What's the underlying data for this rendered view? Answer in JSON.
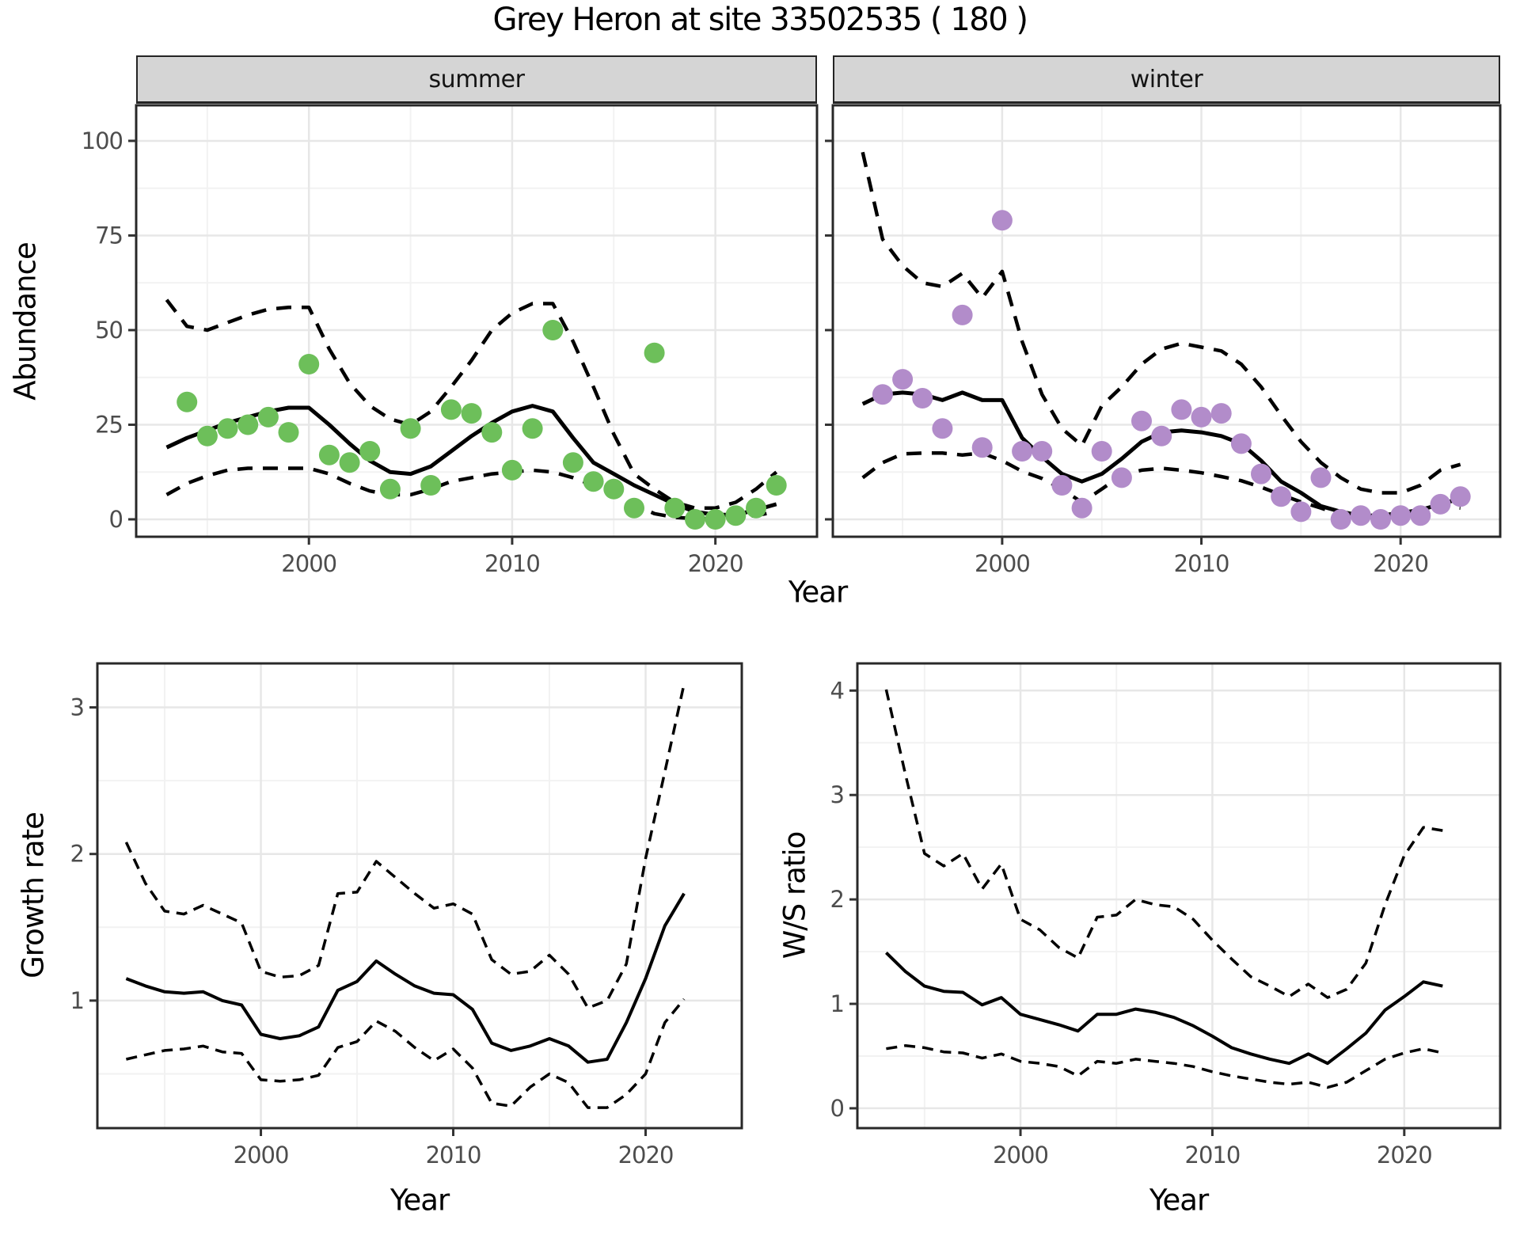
{
  "title": "Grey Heron at site 33502535 ( 180 )",
  "axis_titles": {
    "abundance": "Abundance",
    "year_top": "Year",
    "growth_rate": "Growth rate",
    "year_growth": "Year",
    "ws_ratio": "W/S ratio",
    "year_ws": "Year"
  },
  "colors": {
    "summer_point": "#6dbf5a",
    "winter_point": "#b28cca",
    "trend_line": "#000000",
    "ci_band_line": "#000000",
    "grid_major": "#e7e7e7",
    "grid_minor": "#f2f2f2",
    "panel_border": "#282828",
    "tick_mark": "#333333",
    "tick_label": "#4d4d4d",
    "strip_bg": "#d5d5d5"
  },
  "chart_data": [
    {
      "id": "abundance-summer",
      "type": "scatter",
      "facet": "summer",
      "title": "",
      "xlabel": "Year",
      "ylabel": "Abundance",
      "xlim": [
        1991.5,
        2025
      ],
      "ylim": [
        -4.6,
        109.4
      ],
      "xticks": [
        2000,
        2010,
        2020
      ],
      "xticks_minor": [
        1995,
        2005,
        2015,
        2025
      ],
      "yticks": [
        0,
        25,
        50,
        75,
        100
      ],
      "yticks_minor": [
        12.5,
        37.5,
        62.5,
        87.5
      ],
      "grid": true,
      "legend_position": "none",
      "point_color": "#6dbf5a",
      "points": {
        "years": [
          1994,
          1995,
          1996,
          1997,
          1998,
          1999,
          2000,
          2001,
          2002,
          2003,
          2004,
          2005,
          2006,
          2007,
          2008,
          2009,
          2010,
          2011,
          2012,
          2013,
          2014,
          2015,
          2016,
          2017,
          2018,
          2019,
          2020,
          2021,
          2022,
          2023
        ],
        "values": [
          31,
          22,
          24,
          25,
          27,
          23,
          41,
          17,
          15,
          18,
          8,
          24,
          9,
          29,
          28,
          23,
          13,
          24,
          50,
          15,
          10,
          8,
          3,
          44,
          3,
          0,
          0,
          1,
          3,
          9
        ]
      },
      "line_years": [
        1993,
        1994,
        1995,
        1996,
        1997,
        1998,
        1999,
        2000,
        2001,
        2002,
        2003,
        2004,
        2005,
        2006,
        2007,
        2008,
        2009,
        2010,
        2011,
        2012,
        2013,
        2014,
        2015,
        2016,
        2017,
        2018,
        2019,
        2020,
        2021,
        2022,
        2023
      ],
      "series": [
        {
          "name": "trend",
          "style": "solid",
          "values": [
            19,
            21.5,
            23.5,
            25.5,
            27,
            28.5,
            29.5,
            29.5,
            25,
            20,
            15.5,
            12.5,
            12,
            14,
            18,
            22,
            25.5,
            28.5,
            30,
            28.5,
            21.5,
            15,
            12,
            9,
            6.5,
            4,
            2,
            1.2,
            1.2,
            2.5,
            4
          ]
        },
        {
          "name": "upper_ci",
          "style": "dashed",
          "values": [
            58,
            51,
            50,
            52,
            54,
            55.5,
            56,
            56,
            45,
            36,
            30,
            26.5,
            25,
            28.5,
            35,
            42,
            50,
            54.5,
            57,
            57,
            47,
            35,
            22.5,
            12,
            8,
            4.5,
            3,
            3,
            4.5,
            8,
            12.5
          ]
        },
        {
          "name": "lower_ci",
          "style": "dashed",
          "values": [
            6.5,
            9.5,
            11.5,
            13,
            13.5,
            13.5,
            13.5,
            13.5,
            12,
            9.5,
            7.5,
            6.5,
            6.5,
            8,
            10,
            11,
            12,
            12.5,
            13,
            12.5,
            11,
            9,
            8,
            4,
            1.5,
            0.5,
            0.2,
            0.2,
            0.5,
            1,
            2
          ]
        }
      ]
    },
    {
      "id": "abundance-winter",
      "type": "scatter",
      "facet": "winter",
      "title": "",
      "xlabel": "Year",
      "ylabel": "Abundance",
      "xlim": [
        1991.5,
        2025
      ],
      "ylim": [
        -4.6,
        109.4
      ],
      "xticks": [
        2000,
        2010,
        2020
      ],
      "xticks_minor": [
        1995,
        2005,
        2015,
        2025
      ],
      "yticks": [
        0,
        25,
        50,
        75,
        100
      ],
      "yticks_minor": [
        12.5,
        37.5,
        62.5,
        87.5
      ],
      "grid": true,
      "legend_position": "none",
      "point_color": "#b28cca",
      "points": {
        "years": [
          1994,
          1995,
          1996,
          1997,
          1998,
          1999,
          2000,
          2001,
          2002,
          2003,
          2004,
          2005,
          2006,
          2007,
          2008,
          2009,
          2010,
          2011,
          2012,
          2013,
          2014,
          2015,
          2016,
          2017,
          2018,
          2019,
          2020,
          2021,
          2022,
          2023
        ],
        "values": [
          33,
          37,
          32,
          24,
          54,
          19,
          79,
          18,
          18,
          9,
          3,
          18,
          11,
          26,
          22,
          29,
          27,
          28,
          20,
          12,
          6,
          2,
          11,
          0,
          1,
          0,
          1,
          1,
          4,
          6
        ]
      },
      "line_years": [
        1993,
        1994,
        1995,
        1996,
        1997,
        1998,
        1999,
        2000,
        2001,
        2002,
        2003,
        2004,
        2005,
        2006,
        2007,
        2008,
        2009,
        2010,
        2011,
        2012,
        2013,
        2014,
        2015,
        2016,
        2017,
        2018,
        2019,
        2020,
        2021,
        2022,
        2023
      ],
      "series": [
        {
          "name": "trend",
          "style": "solid",
          "values": [
            30.5,
            33,
            33.5,
            33,
            31.5,
            33.5,
            31.5,
            31.5,
            21.5,
            16.5,
            12,
            10,
            12,
            16,
            20.5,
            23,
            23.5,
            23,
            22,
            20,
            15.5,
            10,
            7,
            3.5,
            2,
            1,
            1,
            1.7,
            2.5,
            4,
            5.5
          ]
        },
        {
          "name": "upper_ci",
          "style": "dashed",
          "values": [
            97,
            74,
            67,
            62.5,
            61.5,
            65,
            58.5,
            65.5,
            47,
            33,
            24,
            19.5,
            30,
            35,
            41,
            45,
            46.5,
            45.5,
            44.5,
            41,
            35,
            27.5,
            20.5,
            15,
            11,
            8,
            7,
            7,
            9,
            13,
            14.5
          ]
        },
        {
          "name": "lower_ci",
          "style": "dashed",
          "values": [
            11,
            15,
            17.3,
            17.5,
            17.5,
            17,
            17.5,
            15.5,
            12.7,
            10.8,
            8,
            4.5,
            8,
            11.7,
            13,
            13.5,
            13,
            12.3,
            11.3,
            10.2,
            8.5,
            6.5,
            4.6,
            3,
            1.2,
            0.6,
            0.5,
            0.8,
            2,
            3.5,
            3
          ]
        }
      ]
    },
    {
      "id": "growth-rate",
      "type": "line",
      "facet": "",
      "title": "",
      "xlabel": "Year",
      "ylabel": "Growth rate",
      "xlim": [
        1991.5,
        2025
      ],
      "ylim": [
        0.13,
        3.3
      ],
      "xticks": [
        2000,
        2010,
        2020
      ],
      "xticks_minor": [
        1995,
        2005,
        2015,
        2025
      ],
      "yticks": [
        1,
        2,
        3
      ],
      "yticks_minor": [
        0.5,
        1.5,
        2.5
      ],
      "grid": true,
      "legend_position": "none",
      "point_color": "",
      "points": {
        "years": [],
        "values": []
      },
      "line_years": [
        1993,
        1994,
        1995,
        1996,
        1997,
        1998,
        1999,
        2000,
        2001,
        2002,
        2003,
        2004,
        2005,
        2006,
        2007,
        2008,
        2009,
        2010,
        2011,
        2012,
        2013,
        2014,
        2015,
        2016,
        2017,
        2018,
        2019,
        2020,
        2021,
        2022
      ],
      "series": [
        {
          "name": "trend",
          "style": "solid",
          "values": [
            1.15,
            1.1,
            1.06,
            1.05,
            1.06,
            1.0,
            0.97,
            0.77,
            0.74,
            0.76,
            0.82,
            1.07,
            1.13,
            1.27,
            1.18,
            1.1,
            1.05,
            1.04,
            0.94,
            0.71,
            0.66,
            0.69,
            0.74,
            0.69,
            0.58,
            0.6,
            0.85,
            1.15,
            1.51,
            1.73
          ]
        },
        {
          "name": "upper_ci",
          "style": "dashed",
          "values": [
            2.08,
            1.8,
            1.61,
            1.59,
            1.65,
            1.59,
            1.53,
            1.2,
            1.16,
            1.17,
            1.24,
            1.73,
            1.74,
            1.95,
            1.84,
            1.73,
            1.63,
            1.66,
            1.59,
            1.28,
            1.18,
            1.2,
            1.31,
            1.18,
            0.95,
            1.0,
            1.25,
            1.97,
            2.56,
            3.16
          ]
        },
        {
          "name": "lower_ci",
          "style": "dashed",
          "values": [
            0.6,
            0.63,
            0.66,
            0.67,
            0.69,
            0.65,
            0.64,
            0.46,
            0.45,
            0.46,
            0.49,
            0.68,
            0.72,
            0.86,
            0.79,
            0.68,
            0.59,
            0.67,
            0.54,
            0.3,
            0.28,
            0.41,
            0.5,
            0.44,
            0.27,
            0.27,
            0.36,
            0.5,
            0.85,
            1.01
          ]
        }
      ]
    },
    {
      "id": "ws-ratio",
      "type": "line",
      "facet": "",
      "title": "",
      "xlabel": "Year",
      "ylabel": "W/S ratio",
      "xlim": [
        1991.5,
        2025
      ],
      "ylim": [
        -0.19,
        4.26
      ],
      "xticks": [
        2000,
        2010,
        2020
      ],
      "xticks_minor": [
        1995,
        2005,
        2015,
        2025
      ],
      "yticks": [
        0,
        1,
        2,
        3,
        4
      ],
      "yticks_minor": [
        0.5,
        1.5,
        2.5,
        3.5
      ],
      "grid": true,
      "legend_position": "none",
      "point_color": "",
      "points": {
        "years": [],
        "values": []
      },
      "line_years": [
        1993,
        1994,
        1995,
        1996,
        1997,
        1998,
        1999,
        2000,
        2001,
        2002,
        2003,
        2004,
        2005,
        2006,
        2007,
        2008,
        2009,
        2010,
        2011,
        2012,
        2013,
        2014,
        2015,
        2016,
        2017,
        2018,
        2019,
        2020,
        2021,
        2022
      ],
      "series": [
        {
          "name": "trend",
          "style": "solid",
          "values": [
            1.49,
            1.31,
            1.17,
            1.12,
            1.11,
            0.99,
            1.06,
            0.9,
            0.85,
            0.8,
            0.74,
            0.9,
            0.9,
            0.95,
            0.92,
            0.87,
            0.79,
            0.69,
            0.58,
            0.52,
            0.47,
            0.43,
            0.52,
            0.43,
            0.57,
            0.72,
            0.94,
            1.07,
            1.21,
            1.17
          ]
        },
        {
          "name": "upper_ci",
          "style": "dashed",
          "values": [
            4.01,
            3.2,
            2.44,
            2.32,
            2.44,
            2.1,
            2.34,
            1.81,
            1.71,
            1.54,
            1.44,
            1.83,
            1.85,
            2.0,
            1.95,
            1.93,
            1.81,
            1.61,
            1.43,
            1.26,
            1.17,
            1.07,
            1.19,
            1.06,
            1.14,
            1.39,
            1.95,
            2.42,
            2.69,
            2.66
          ]
        },
        {
          "name": "lower_ci",
          "style": "dashed",
          "values": [
            0.57,
            0.6,
            0.58,
            0.54,
            0.53,
            0.48,
            0.52,
            0.45,
            0.43,
            0.4,
            0.31,
            0.45,
            0.43,
            0.47,
            0.45,
            0.43,
            0.4,
            0.35,
            0.31,
            0.28,
            0.25,
            0.23,
            0.25,
            0.2,
            0.25,
            0.36,
            0.47,
            0.53,
            0.57,
            0.53
          ]
        }
      ]
    }
  ]
}
